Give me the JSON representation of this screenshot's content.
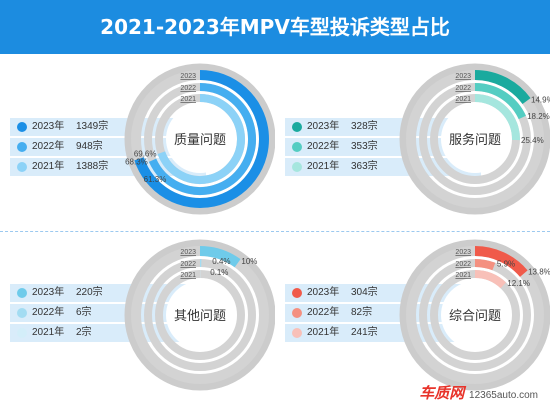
{
  "title": "2021-2023年MPV车型投诉类型占比",
  "logo": {
    "brand": "车质网",
    "site": "12365auto.com"
  },
  "chart_data": [
    {
      "type": "donut",
      "center_label": "质量问题",
      "series": [
        {
          "year": "2023",
          "legend_year": "2023年",
          "count": "1349宗",
          "percent": 0.7,
          "label": "",
          "color": "#1b8fe6"
        },
        {
          "year": "2022",
          "legend_year": "2022年",
          "count": "948宗",
          "percent": 0.683,
          "label": "68.3%",
          "color": "#45aef0"
        },
        {
          "year": "2021",
          "legend_year": "2021年",
          "count": "1388宗",
          "percent": 0.696,
          "label": "69.6%",
          "color": "#8cd2f7"
        }
      ],
      "extra_labels": [
        "61.3%"
      ]
    },
    {
      "type": "donut",
      "center_label": "服务问题",
      "series": [
        {
          "year": "2023",
          "legend_year": "2023年",
          "count": "328宗",
          "percent": 0.149,
          "label": "14.9%",
          "color": "#1aaa9e"
        },
        {
          "year": "2022",
          "legend_year": "2022年",
          "count": "353宗",
          "percent": 0.182,
          "label": "18.2%",
          "color": "#54cdc2"
        },
        {
          "year": "2021",
          "legend_year": "2021年",
          "count": "363宗",
          "percent": 0.254,
          "label": "25.4%",
          "color": "#a5e6de"
        }
      ],
      "extra_labels": []
    },
    {
      "type": "donut",
      "center_label": "其他问题",
      "series": [
        {
          "year": "2023",
          "legend_year": "2023年",
          "count": "220宗",
          "percent": 0.1,
          "label": "10%",
          "color": "#6fcbea"
        },
        {
          "year": "2022",
          "legend_year": "2022年",
          "count": "6宗",
          "percent": 0.004,
          "label": "0.4%",
          "color": "#a3dcf2"
        },
        {
          "year": "2021",
          "legend_year": "2021年",
          "count": "2宗",
          "percent": 0.001,
          "label": "0.1%",
          "color": "#d3eef9"
        }
      ],
      "extra_labels": []
    },
    {
      "type": "donut",
      "center_label": "综合问题",
      "series": [
        {
          "year": "2023",
          "legend_year": "2023年",
          "count": "304宗",
          "percent": 0.138,
          "label": "13.8%",
          "color": "#f05a4a"
        },
        {
          "year": "2022",
          "legend_year": "2022年",
          "count": "82宗",
          "percent": 0.059,
          "label": "5.9%",
          "color": "#f49080"
        },
        {
          "year": "2021",
          "legend_year": "2021年",
          "count": "241宗",
          "percent": 0.121,
          "label": "12.1%",
          "color": "#f8c0b8"
        }
      ],
      "extra_labels": []
    }
  ]
}
